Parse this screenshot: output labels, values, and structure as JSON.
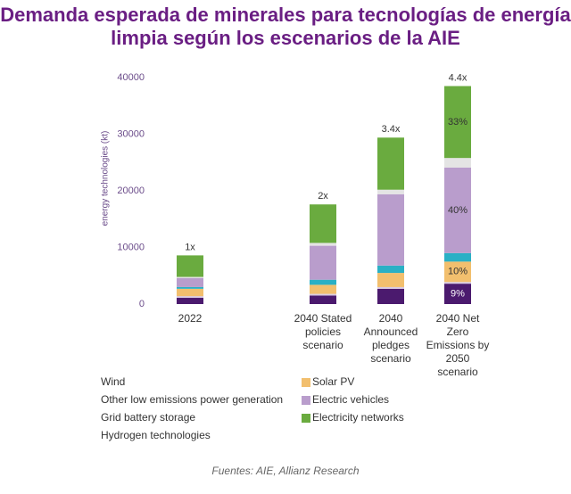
{
  "chart_data": {
    "type": "stacked_bar",
    "title": "Demanda esperada de minerales para tecnologías de energía limpia según los escenarios de la AIE",
    "y_label": "energy technologies (kt)",
    "categories": [
      "2022",
      "2040 Stated policies scenario",
      "2040 Announced pledges scenario",
      "2040 Net Zero Emissions by 2050 scenario"
    ],
    "bar_labels": [
      "1x",
      "2x",
      "3.4x",
      "4.4x"
    ],
    "series": [
      {
        "name": "Wind",
        "color": "#4b1a6e",
        "values": [
          1100,
          1500,
          2700,
          3600
        ],
        "share_labels": [
          null,
          null,
          null,
          "9%"
        ]
      },
      {
        "name": "Other low emissions power generation",
        "color": "#d9cbe3",
        "values": [
          300,
          300,
          300,
          300
        ]
      },
      {
        "name": "Solar PV",
        "color": "#f2bf6e",
        "values": [
          1300,
          1600,
          2500,
          3600
        ],
        "share_labels": [
          null,
          null,
          null,
          "10%"
        ]
      },
      {
        "name": "Grid battery storage",
        "color": "#2ab0c5",
        "values": [
          300,
          900,
          1300,
          1500
        ]
      },
      {
        "name": "Electric vehicles",
        "color": "#b99dcc",
        "values": [
          1600,
          6000,
          12600,
          15100
        ],
        "share_labels": [
          null,
          null,
          null,
          "40%"
        ]
      },
      {
        "name": "Hydrogen technologies",
        "color": "#e4e4e4",
        "values": [
          200,
          500,
          800,
          1700
        ]
      },
      {
        "name": "Electricity networks",
        "color": "#6aab3f",
        "values": [
          3800,
          6800,
          9200,
          12700
        ],
        "share_labels": [
          null,
          null,
          null,
          "33%"
        ]
      }
    ],
    "ylim": [
      0,
      40000
    ],
    "yticks": [
      0,
      10000,
      20000,
      30000,
      40000
    ],
    "source": "Fuentes: AIE, Allianz Research"
  }
}
